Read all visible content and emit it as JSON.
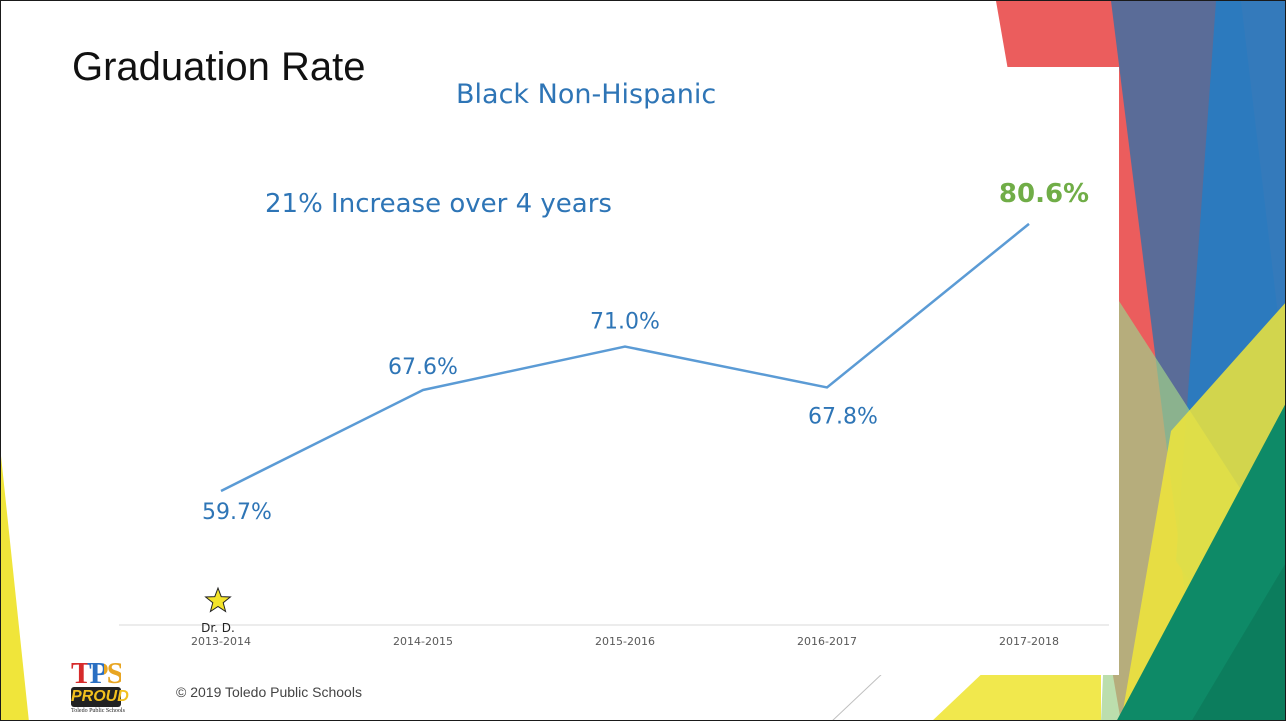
{
  "slide": {
    "title": "Graduation Rate",
    "footer": "© 2019 Toledo Public Schools",
    "logo": {
      "main": "TPS",
      "sub": "PROUD",
      "caption": "Toledo Public Schools"
    }
  },
  "colors": {
    "line": "#5b9bd5",
    "label": "#2e75b6",
    "highlight": "#70ad47",
    "axis": "#d9d9d9",
    "tick_text": "#595959",
    "star": "#f4e42a"
  },
  "chart_data": {
    "type": "line",
    "title": "Black Non-Hispanic",
    "subtitle": "21% Increase over 4 years",
    "categories": [
      "2013-2014",
      "2014-2015",
      "2015-2016",
      "2016-2017",
      "2017-2018"
    ],
    "series": [
      {
        "values": [
          59.7,
          67.6,
          71.0,
          67.8,
          80.6
        ]
      }
    ],
    "data_labels": [
      "59.7%",
      "67.6%",
      "71.0%",
      "67.8%",
      "80.6%"
    ],
    "ylim": [
      55,
      82
    ],
    "grid": false,
    "legend": "none",
    "annotation": {
      "text": "Dr. D.",
      "category": "2013-2014",
      "icon": "star-icon"
    }
  }
}
